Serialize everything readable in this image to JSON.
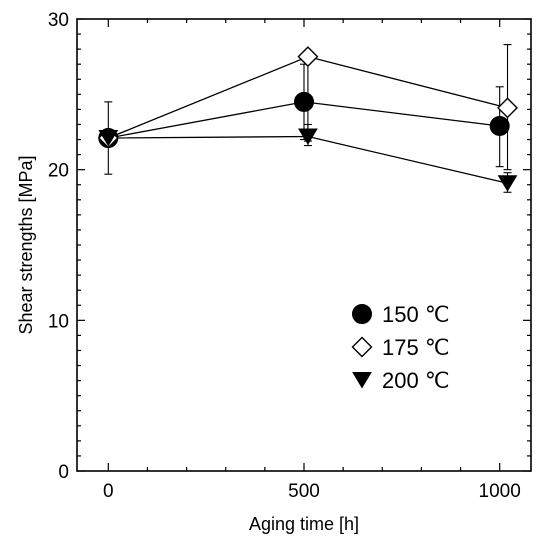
{
  "chart_data": {
    "type": "line",
    "xlabel": "Aging time [h]",
    "ylabel": "Shear strengths [MPa]",
    "xlim": [
      -80,
      1080
    ],
    "ylim": [
      0,
      30
    ],
    "xticks": [
      0,
      500,
      1000
    ],
    "yticks": [
      0,
      10,
      20,
      30
    ],
    "legend_position": "bottom-right",
    "grid": false,
    "series": [
      {
        "name": "150 ℃",
        "marker": "filled-circle",
        "color": "#000000",
        "points": [
          {
            "x": 0,
            "y": 22.1,
            "err_low": 2.4,
            "err_high": 2.4
          },
          {
            "x": 500,
            "y": 24.5,
            "err_low": 2.5,
            "err_high": 2.5
          },
          {
            "x": 1000,
            "y": 22.9,
            "err_low": 2.7,
            "err_high": 2.6
          }
        ]
      },
      {
        "name": "175 ℃",
        "marker": "open-diamond",
        "color": "#000000",
        "points": [
          {
            "x": 0,
            "y": 22.1,
            "err_low": 0,
            "err_high": 0
          },
          {
            "x": 510,
            "y": 27.5,
            "err_low": 5.6,
            "err_high": 0
          },
          {
            "x": 1020,
            "y": 24.1,
            "err_low": 4.1,
            "err_high": 4.2
          }
        ]
      },
      {
        "name": "200 ℃",
        "marker": "filled-triangle-down",
        "color": "#000000",
        "points": [
          {
            "x": 0,
            "y": 22.1,
            "err_low": 0,
            "err_high": 0
          },
          {
            "x": 510,
            "y": 22.2,
            "err_low": 0.6,
            "err_high": 0.8
          },
          {
            "x": 1020,
            "y": 19.1,
            "err_low": 0.6,
            "err_high": 0.7
          }
        ]
      }
    ]
  }
}
